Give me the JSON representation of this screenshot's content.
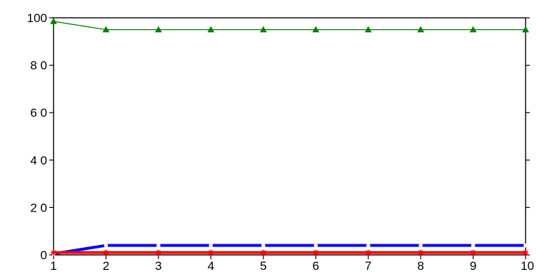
{
  "chart_data": {
    "type": "line",
    "title": "",
    "xlabel": "",
    "ylabel": "",
    "x": [
      1,
      2,
      3,
      4,
      5,
      6,
      7,
      8,
      9,
      10
    ],
    "xlim": [
      1,
      10
    ],
    "ylim": [
      0,
      100
    ],
    "x_ticks": [
      1,
      2,
      3,
      4,
      5,
      6,
      7,
      8,
      9,
      10
    ],
    "y_ticks": [
      0,
      20,
      40,
      60,
      80,
      100
    ],
    "y_tick_labels": [
      "0",
      "2 0",
      "4 0",
      "6 0",
      "8 0",
      "100"
    ],
    "grid": false,
    "legend": "none",
    "series": [
      {
        "values": [
          98.5,
          95,
          95,
          95,
          95,
          95,
          95,
          95,
          95,
          95
        ],
        "color": "#008000",
        "marker": "triangle",
        "line_weight": "thin"
      },
      {
        "values": [
          0.5,
          4,
          4,
          4,
          4,
          4,
          4,
          4,
          4,
          4
        ],
        "color": "#0000ff",
        "marker": "circle",
        "line_weight": "thick"
      },
      {
        "values": [
          1,
          1,
          1,
          1,
          1,
          1,
          1,
          1,
          1,
          1
        ],
        "color": "#ff0000",
        "marker": "asterisk",
        "line_weight": "thick"
      }
    ]
  }
}
